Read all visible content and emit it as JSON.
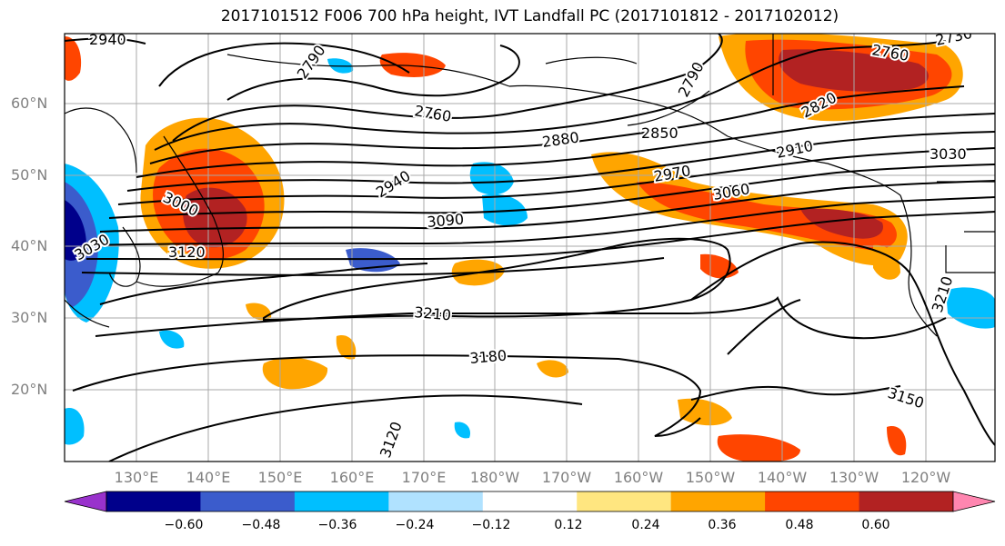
{
  "title": "2017101512 F006 700 hPa height, IVT Landfall PC (2017101812 - 2017102012)",
  "lat_labels": [
    "60°N",
    "50°N",
    "40°N",
    "30°N",
    "20°N"
  ],
  "lon_labels": [
    "130°E",
    "140°E",
    "150°E",
    "160°E",
    "170°E",
    "180°W",
    "170°W",
    "160°W",
    "150°W",
    "140°W",
    "130°W",
    "120°W"
  ],
  "contour_labels": [
    "2940",
    "2790",
    "2760",
    "2730",
    "2760",
    "2790",
    "2820",
    "2850",
    "2880",
    "2910",
    "2940",
    "2970",
    "3000",
    "3030",
    "3060",
    "3090",
    "3120",
    "3030",
    "3210",
    "3180",
    "3150",
    "3120",
    "3210"
  ],
  "colorbar": {
    "ticks": [
      "−0.60",
      "−0.48",
      "−0.36",
      "−0.24",
      "−0.12",
      "0.12",
      "0.24",
      "0.36",
      "0.48",
      "0.60"
    ],
    "colors": [
      "#9932cc",
      "#00008b",
      "#3b5ccc",
      "#00bfff",
      "#b0e2ff",
      "#ffffff",
      "#ffe680",
      "#ffa500",
      "#ff4500",
      "#b22222",
      "#ff86b0"
    ]
  }
}
